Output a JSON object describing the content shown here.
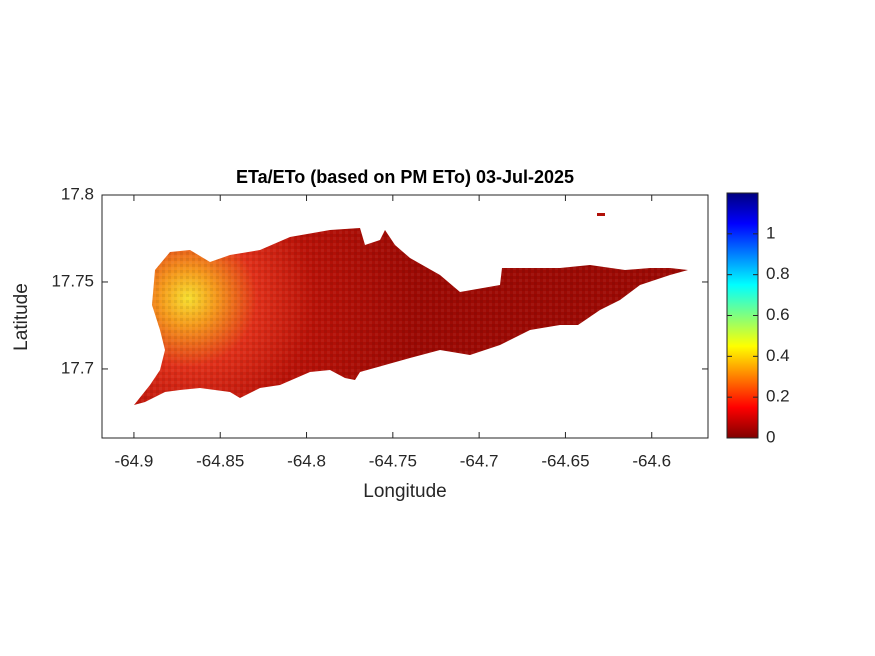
{
  "chart_data": {
    "type": "map",
    "title": "ETa/ETo (based on PM ETo) 03-Jul-2025",
    "xlabel": "Longitude",
    "ylabel": "Latitude",
    "xlim": [
      -64.9185,
      -64.5674
    ],
    "ylim": [
      17.6603,
      17.8
    ],
    "xticks": [
      -64.9,
      -64.85,
      -64.8,
      -64.75,
      -64.7,
      -64.65,
      -64.6
    ],
    "yticks": [
      17.7,
      17.75,
      17.8
    ],
    "colorbar": {
      "clim": [
        0,
        1.2
      ],
      "ticks": [
        0,
        0.2,
        0.4,
        0.6,
        0.8,
        1
      ],
      "colormap": "jet"
    }
  }
}
